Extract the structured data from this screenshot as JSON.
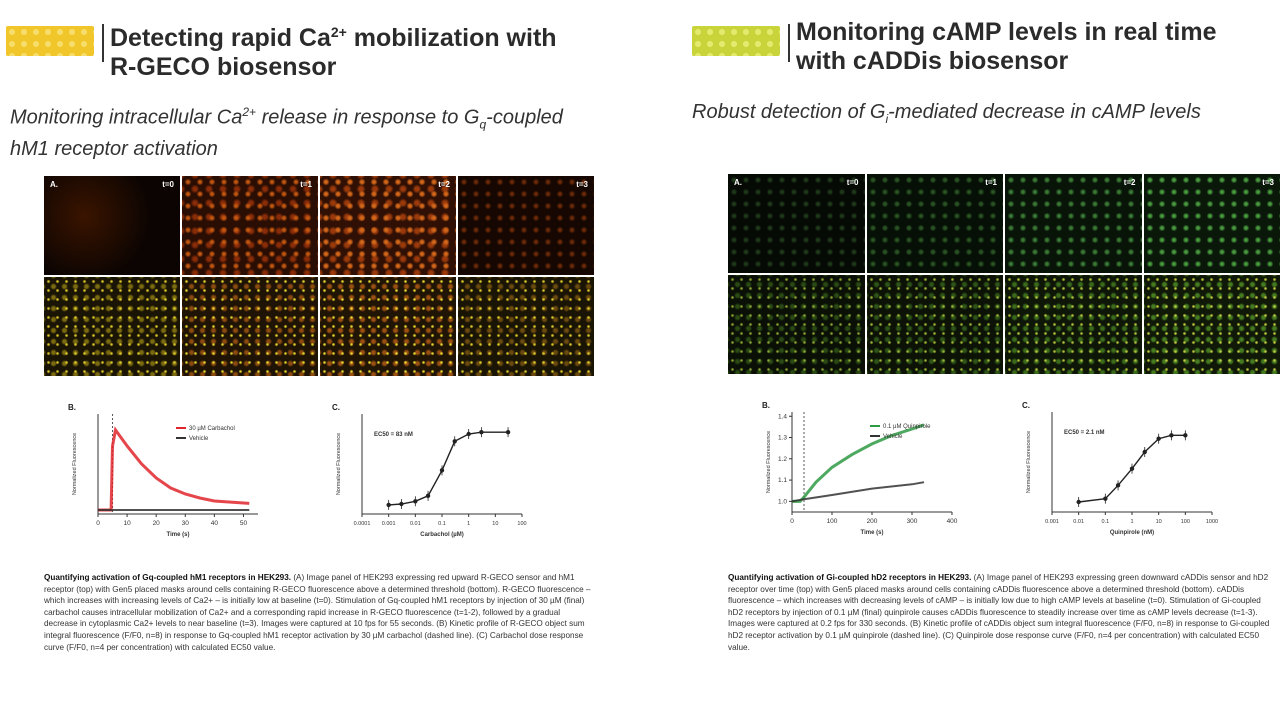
{
  "left": {
    "title_line1_pre": "Detecting rapid Ca",
    "title_line1_sup": "2+",
    "title_line1_post": " mobilization with",
    "title_line2": "R-GECO biosensor",
    "subtitle_pre": "Monitoring intracellular Ca",
    "subtitle_sup": "2+",
    "subtitle_mid": " release in response to G",
    "subtitle_sub": "q",
    "subtitle_post": "-coupled",
    "subtitle_line2": "hM1 receptor activation",
    "panel_label_a": "A.",
    "timepoints": [
      "t=0",
      "t=1",
      "t=2",
      "t=3"
    ],
    "panel_label_b": "B.",
    "panel_label_c": "C.",
    "caption_bold": "Quantifying activation of Gq-coupled hM1 receptors in HEK293.",
    "caption_text": "(A) Image panel of HEK293 expressing red upward R-GECO sensor and hM1 receptor (top) with Gen5 placed masks around cells containing R-GECO fluorescence above a determined threshold (bottom). R-GECO fluorescence – which increases with increasing levels of Ca2+ – is initially low at baseline (t=0). Stimulation of Gq-coupled hM1 receptors by injection of 30 µM (final) carbachol causes intracellular mobilization of Ca2+ and a corresponding rapid increase in R-GECO fluorescence (t=1-2), followed by a gradual decrease in cytoplasmic Ca2+ levels to near baseline (t=3). Images were captured at 10 fps for 55 seconds. (B) Kinetic profile of R-GECO object sum integral fluorescence (F/F0, n=8) in response to Gq-coupled hM1 receptor activation by 30 µM carbachol (dashed line). (C) Carbachol dose response curve (F/F0, n=4 per concentration) with calculated EC50 value."
  },
  "right": {
    "title_line1": "Monitoring cAMP levels in real time",
    "title_line2": "with cADDis biosensor",
    "subtitle_pre": "Robust detection of G",
    "subtitle_sub": "i",
    "subtitle_post": "-mediated decrease in cAMP levels",
    "panel_label_a": "A.",
    "timepoints": [
      "t=0",
      "t=1",
      "t=2",
      "t=3"
    ],
    "panel_label_b": "B.",
    "panel_label_c": "C.",
    "caption_bold": "Quantifying activation of Gi-coupled hD2 receptors in HEK293.",
    "caption_text": "(A) Image panel of HEK293 expressing green downward cADDis sensor and hD2 receptor over time (top) with Gen5 placed masks around cells containing cADDis fluorescence above a determined threshold (bottom). cADDis fluorescence – which increases with decreasing levels of cAMP – is initially low due to high cAMP levels at baseline (t=0). Stimulation of Gi-coupled hD2 receptors by injection of 0.1 µM (final) quinpirole causes cADDis fluorescence to steadily increase over time as cAMP levels decrease (t=1-3). Images were captured at 0.2 fps for 330 seconds. (B) Kinetic profile of cADDis object sum integral fluorescence (F/F0, n=8) in response to Gi-coupled hD2 receptor activation by 0.1 µM quinpirole (dashed line). (C) Quinpirole dose response curve (F/F0, n=4 per concentration) with calculated EC50 value."
  },
  "colors": {
    "red_series": "#e0262c",
    "dark_series": "#333333",
    "green_series": "#2f9a44",
    "title_bar_left": "#f1c62a",
    "title_bar_right": "#c8d43a"
  },
  "chart_data": [
    {
      "type": "line",
      "id": "left-B",
      "xlabel": "Time (s)",
      "ylabel": "Normalized Fluorescence",
      "xticks": [
        0,
        10,
        20,
        30,
        40,
        50
      ],
      "xlim": [
        0,
        55
      ],
      "ylim": [
        0.8,
        5.8
      ],
      "stimulus_x": 5,
      "series": [
        {
          "name": "30 µM Carbachol",
          "color": "#e0262c",
          "x": [
            0,
            4.5,
            5,
            6,
            8,
            10,
            15,
            20,
            25,
            30,
            35,
            40,
            45,
            50,
            52
          ],
          "y": [
            1.0,
            1.0,
            4.2,
            5.0,
            4.6,
            4.2,
            3.3,
            2.6,
            2.1,
            1.8,
            1.6,
            1.45,
            1.4,
            1.35,
            1.33
          ]
        },
        {
          "name": "Vehicle",
          "color": "#333333",
          "x": [
            0,
            5,
            10,
            20,
            30,
            40,
            50,
            52
          ],
          "y": [
            1.0,
            1.0,
            1.0,
            1.0,
            1.0,
            1.0,
            1.0,
            1.0
          ]
        }
      ]
    },
    {
      "type": "scatter",
      "id": "left-C",
      "annotation": "EC50 = 83 nM",
      "xlabel": "Carbachol (µM)",
      "ylabel": "Normalized Fluorescence",
      "xscale": "log",
      "xtick_labels": [
        "0.0001",
        "0.001",
        "0.01",
        "0.1",
        "1",
        "10",
        "100"
      ],
      "xlim": [
        0.0001,
        100
      ],
      "ylim": [
        0.5,
        6
      ],
      "x": [
        0.001,
        0.003,
        0.01,
        0.03,
        0.1,
        0.3,
        1,
        3,
        30
      ],
      "y": [
        1.0,
        1.05,
        1.2,
        1.5,
        2.9,
        4.5,
        4.9,
        5.0,
        5.0
      ]
    },
    {
      "type": "line",
      "id": "right-B",
      "xlabel": "Time (s)",
      "ylabel": "Normalized Fluorescence",
      "xticks": [
        0,
        100,
        200,
        300,
        400
      ],
      "yticks": [
        1.0,
        1.1,
        1.2,
        1.3,
        1.4
      ],
      "xlim": [
        0,
        400
      ],
      "ylim": [
        0.95,
        1.42
      ],
      "stimulus_x": 30,
      "series": [
        {
          "name": "0.1 µM Quinpirole",
          "color": "#2f9a44",
          "x": [
            0,
            20,
            30,
            60,
            100,
            150,
            200,
            250,
            300,
            330
          ],
          "y": [
            1.0,
            1.0,
            1.02,
            1.09,
            1.16,
            1.22,
            1.27,
            1.31,
            1.34,
            1.36
          ]
        },
        {
          "name": "Vehicle",
          "color": "#333333",
          "x": [
            0,
            30,
            100,
            200,
            300,
            330
          ],
          "y": [
            1.0,
            1.01,
            1.03,
            1.06,
            1.08,
            1.09
          ]
        }
      ]
    },
    {
      "type": "scatter",
      "id": "right-C",
      "annotation": "EC50 = 2.1 nM",
      "xlabel": "Quinpirole (nM)",
      "ylabel": "Normalized Fluorescence",
      "xscale": "log",
      "xtick_labels": [
        "0.001",
        "0.01",
        "0.1",
        "1",
        "10",
        "100",
        "1000"
      ],
      "xlim": [
        0.001,
        1000
      ],
      "ylim": [
        0.95,
        2.45
      ],
      "x": [
        0.01,
        0.1,
        0.3,
        1,
        3,
        10,
        30,
        100
      ],
      "y": [
        1.1,
        1.15,
        1.35,
        1.6,
        1.85,
        2.05,
        2.1,
        2.1
      ]
    }
  ]
}
